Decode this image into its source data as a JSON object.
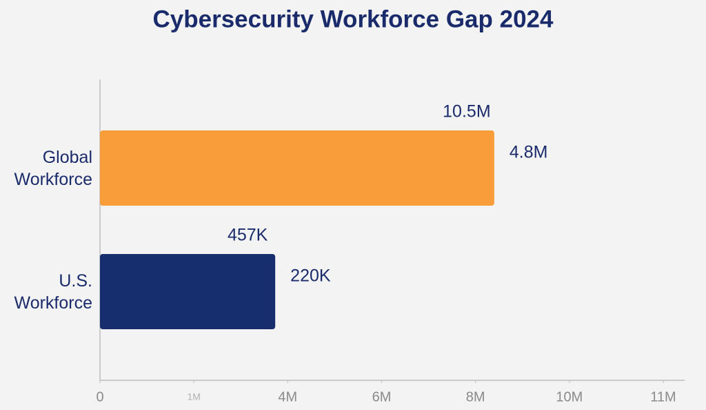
{
  "chart_data": {
    "type": "hbar",
    "title": "Cybersecurity Workforce Gap 2024",
    "categories": [
      "Global Workforce",
      "U.S. Workforce"
    ],
    "values": [
      8400000,
      3600000
    ],
    "colors": [
      "#f99d3a",
      "#162e6e"
    ],
    "annotations": [
      [
        "10.5M",
        "4.8M"
      ],
      [
        "457K",
        "220K"
      ]
    ],
    "xlim": [
      0,
      11000000
    ],
    "xticks": [
      0,
      {
        "value": 1000000,
        "label": "1M"
      },
      {
        "value": 4000000,
        "label": "4M"
      },
      {
        "value": 6000000,
        "label": "6M"
      },
      {
        "value": 8000000,
        "label": "8M"
      },
      {
        "value": 10000000,
        "label": "10M"
      },
      {
        "value": 11000000,
        "label": "11M"
      }
    ]
  }
}
